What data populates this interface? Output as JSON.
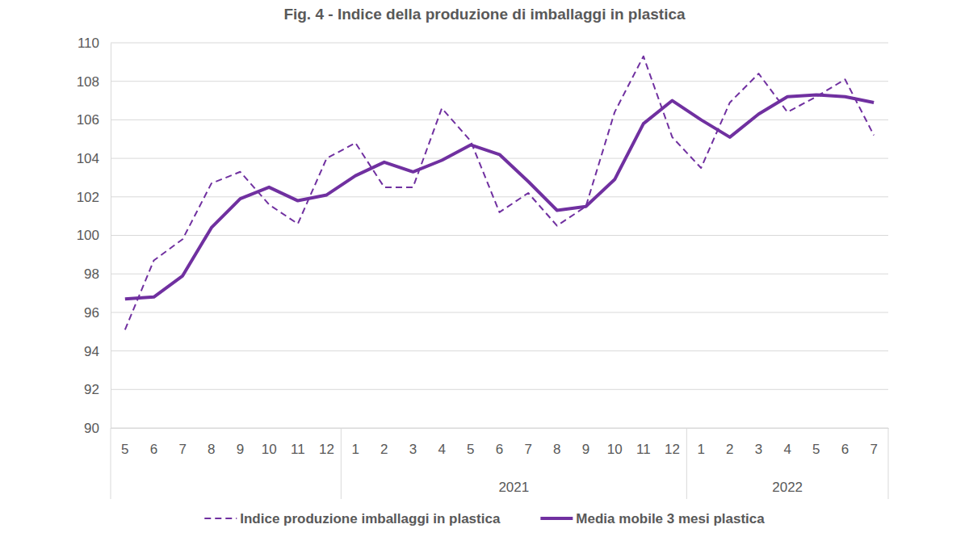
{
  "chart_data": {
    "type": "line",
    "title": "Fig. 4  - Indice della produzione di imballaggi in plastica",
    "categories": [
      "5",
      "6",
      "7",
      "8",
      "9",
      "10",
      "11",
      "12",
      "1",
      "2",
      "3",
      "4",
      "5",
      "6",
      "7",
      "8",
      "9",
      "10",
      "11",
      "12",
      "1",
      "2",
      "3",
      "4",
      "5",
      "6",
      "7"
    ],
    "x_groups": [
      {
        "label": null,
        "size": 8
      },
      {
        "label": "2021",
        "size": 12
      },
      {
        "label": "2022",
        "size": 7
      }
    ],
    "series": [
      {
        "name": "Indice produzione imballaggi in plastica",
        "color": "#7030a0",
        "line_style": "dashed",
        "values": [
          95.1,
          98.7,
          99.8,
          102.7,
          103.3,
          101.6,
          100.6,
          104.0,
          104.8,
          102.5,
          102.5,
          106.6,
          104.9,
          101.2,
          102.2,
          100.5,
          101.5,
          106.4,
          109.3,
          105.1,
          103.5,
          106.9,
          108.4,
          106.4,
          107.2,
          108.1,
          105.2
        ]
      },
      {
        "name": "Media mobile 3 mesi plastica",
        "color": "#7030a0",
        "line_style": "solid",
        "values": [
          96.7,
          96.8,
          97.9,
          100.4,
          101.9,
          102.5,
          101.8,
          102.1,
          103.1,
          103.8,
          103.3,
          103.9,
          104.7,
          104.2,
          102.8,
          101.3,
          101.5,
          102.9,
          105.8,
          107.0,
          106.0,
          105.1,
          106.3,
          107.2,
          107.3,
          107.2,
          106.9
        ]
      }
    ],
    "ylim": [
      90,
      110
    ],
    "yticks": [
      90,
      92,
      94,
      96,
      98,
      100,
      102,
      104,
      106,
      108,
      110
    ],
    "grid": true,
    "legend": "bottom"
  }
}
